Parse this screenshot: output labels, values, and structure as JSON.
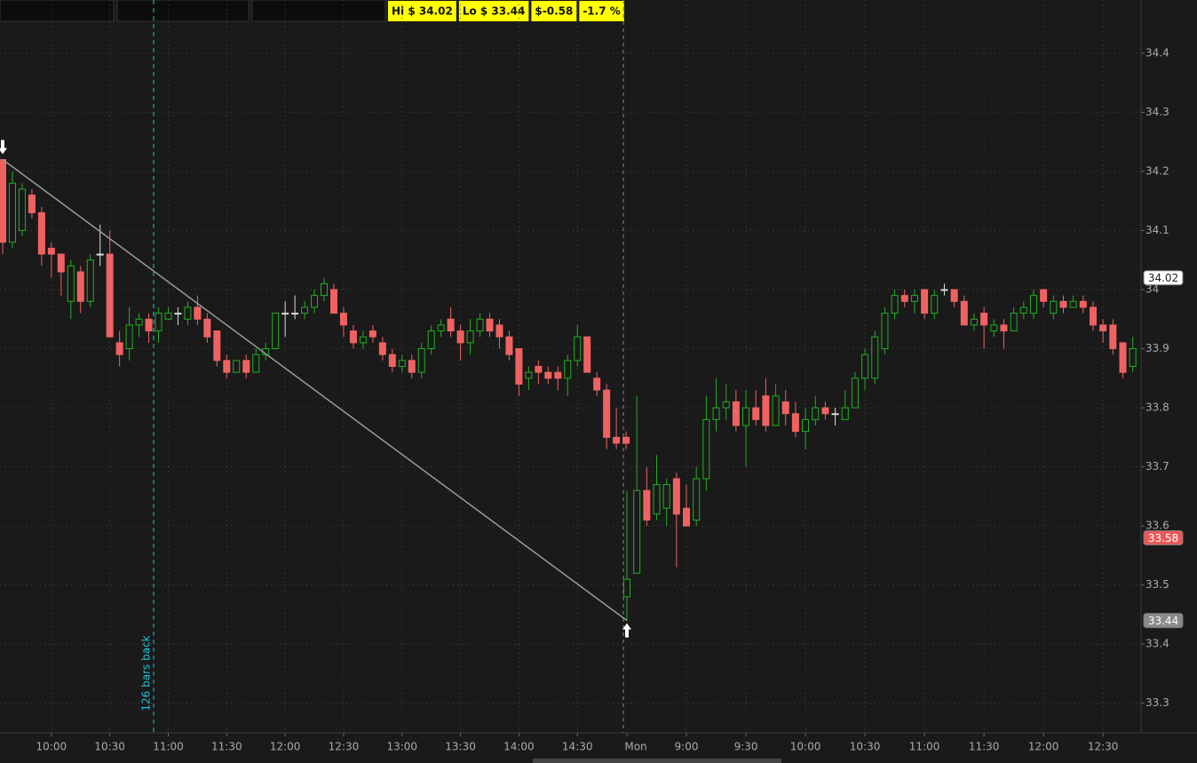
{
  "chart_data": {
    "type": "candlestick",
    "header_labels": [
      "Hi $ 34.02",
      "Lo $ 33.44",
      "$-0.58",
      "-1.7 %"
    ],
    "marker_label": "126 bars back",
    "categories": [
      null,
      null,
      null,
      null,
      null,
      "10:00",
      null,
      null,
      null,
      null,
      null,
      "10:30",
      null,
      null,
      null,
      null,
      null,
      "11:00",
      null,
      null,
      null,
      null,
      null,
      "11:30",
      null,
      null,
      null,
      null,
      null,
      "12:00",
      null,
      null,
      null,
      null,
      null,
      "12:30",
      null,
      null,
      null,
      null,
      null,
      "13:00",
      null,
      null,
      null,
      null,
      null,
      "13:30",
      null,
      null,
      null,
      null,
      null,
      "14:00",
      null,
      null,
      null,
      null,
      null,
      "14:30",
      null,
      null,
      null,
      null,
      null,
      "Mon",
      null,
      null,
      null,
      null,
      null,
      "9:00",
      null,
      null,
      null,
      null,
      null,
      "9:30",
      null,
      null,
      null,
      null,
      null,
      "10:00",
      null,
      null,
      null,
      null,
      null,
      "10:30",
      null,
      null,
      null,
      null,
      null,
      "11:00",
      null,
      null,
      null,
      null,
      null,
      "11:30",
      null,
      null,
      null,
      null,
      null,
      "12:00",
      null,
      null,
      null,
      null,
      null,
      "12:30",
      null,
      null,
      null
    ],
    "open": [
      34.22,
      34.08,
      34.1,
      34.16,
      34.13,
      34.07,
      34.06,
      33.98,
      34.03,
      33.98,
      34.06,
      34.06,
      33.91,
      33.9,
      33.94,
      33.95,
      33.93,
      33.95,
      33.96,
      33.95,
      33.97,
      33.95,
      33.93,
      33.88,
      33.86,
      33.88,
      33.86,
      33.89,
      33.9,
      33.96,
      33.96,
      33.96,
      33.97,
      33.99,
      34.0,
      33.96,
      33.93,
      33.91,
      33.93,
      33.91,
      33.89,
      33.87,
      33.88,
      33.86,
      33.9,
      33.93,
      33.95,
      33.93,
      33.91,
      33.93,
      33.95,
      33.94,
      33.92,
      33.9,
      33.85,
      33.87,
      33.86,
      33.86,
      33.85,
      33.88,
      33.92,
      33.85,
      33.83,
      33.75,
      33.75,
      33.48,
      33.52,
      33.66,
      33.62,
      33.63,
      33.68,
      33.63,
      33.61,
      33.68,
      33.78,
      33.8,
      33.81,
      33.77,
      33.8,
      33.82,
      33.77,
      33.81,
      33.79,
      33.76,
      33.78,
      33.8,
      33.79,
      33.78,
      33.8,
      33.85,
      33.85,
      33.9,
      33.96,
      33.99,
      33.98,
      34.0,
      33.96,
      34.0,
      34.0,
      33.98,
      33.94,
      33.96,
      33.93,
      33.94,
      33.93,
      33.96,
      33.96,
      34.0,
      33.96,
      33.98,
      33.97,
      33.98,
      33.97,
      33.94,
      33.94,
      33.91,
      33.87
    ],
    "high": [
      34.22,
      34.2,
      34.18,
      34.17,
      34.14,
      34.08,
      34.06,
      34.05,
      34.04,
      34.06,
      34.11,
      34.1,
      33.93,
      33.97,
      33.96,
      33.96,
      33.97,
      33.97,
      33.97,
      33.98,
      33.99,
      33.96,
      33.93,
      33.89,
      33.88,
      33.89,
      33.9,
      33.91,
      33.96,
      33.98,
      33.99,
      33.98,
      34.0,
      34.02,
      34.01,
      33.97,
      33.94,
      33.93,
      33.94,
      33.92,
      33.9,
      33.89,
      33.89,
      33.91,
      33.94,
      33.95,
      33.97,
      33.94,
      33.95,
      33.96,
      33.96,
      33.95,
      33.93,
      33.9,
      33.87,
      33.88,
      33.87,
      33.87,
      33.89,
      33.94,
      33.92,
      33.86,
      33.84,
      33.8,
      33.76,
      33.66,
      33.82,
      33.7,
      33.72,
      33.68,
      33.69,
      33.67,
      33.7,
      33.82,
      33.85,
      33.84,
      33.83,
      33.83,
      33.83,
      33.85,
      33.84,
      33.83,
      33.81,
      33.8,
      33.82,
      33.81,
      33.8,
      33.83,
      33.86,
      33.9,
      33.93,
      33.97,
      34.0,
      34.0,
      34.0,
      34.0,
      34.0,
      34.01,
      34.0,
      33.99,
      33.96,
      33.97,
      33.95,
      33.95,
      33.97,
      33.98,
      34.0,
      34.0,
      33.99,
      33.99,
      33.99,
      33.99,
      33.98,
      33.95,
      33.95,
      33.91,
      33.92
    ],
    "low": [
      34.06,
      34.07,
      34.09,
      34.12,
      34.04,
      34.02,
      33.99,
      33.95,
      33.96,
      33.97,
      34.04,
      33.92,
      33.87,
      33.88,
      33.92,
      33.91,
      33.91,
      33.95,
      33.94,
      33.94,
      33.94,
      33.91,
      33.87,
      33.85,
      33.86,
      33.85,
      33.86,
      33.88,
      33.9,
      33.92,
      33.95,
      33.95,
      33.96,
      33.98,
      33.96,
      33.92,
      33.9,
      33.9,
      33.91,
      33.88,
      33.86,
      33.86,
      33.85,
      33.85,
      33.89,
      33.92,
      33.92,
      33.88,
      33.89,
      33.92,
      33.92,
      33.9,
      33.88,
      33.82,
      33.83,
      33.84,
      33.84,
      33.83,
      33.82,
      33.87,
      33.86,
      33.82,
      33.73,
      33.73,
      33.73,
      33.44,
      33.52,
      33.6,
      33.61,
      33.6,
      33.53,
      33.6,
      33.6,
      33.66,
      33.76,
      33.78,
      33.76,
      33.7,
      33.77,
      33.76,
      33.77,
      33.77,
      33.75,
      33.73,
      33.77,
      33.78,
      33.77,
      33.78,
      33.8,
      33.83,
      33.84,
      33.89,
      33.95,
      33.97,
      33.96,
      33.95,
      33.95,
      33.99,
      33.97,
      33.94,
      33.93,
      33.9,
      33.92,
      33.9,
      33.93,
      33.95,
      33.95,
      33.97,
      33.95,
      33.96,
      33.97,
      33.96,
      33.93,
      33.91,
      33.89,
      33.85,
      33.86
    ],
    "close": [
      34.08,
      34.18,
      34.17,
      34.13,
      34.06,
      34.06,
      34.03,
      34.04,
      33.98,
      34.05,
      34.06,
      33.92,
      33.89,
      33.94,
      33.95,
      33.93,
      33.96,
      33.96,
      33.96,
      33.97,
      33.95,
      33.92,
      33.88,
      33.86,
      33.88,
      33.86,
      33.89,
      33.9,
      33.96,
      33.96,
      33.96,
      33.97,
      33.99,
      34.01,
      33.96,
      33.94,
      33.91,
      33.92,
      33.92,
      33.89,
      33.87,
      33.88,
      33.86,
      33.9,
      33.93,
      33.94,
      33.93,
      33.91,
      33.93,
      33.95,
      33.93,
      33.92,
      33.89,
      33.84,
      33.86,
      33.86,
      33.85,
      33.85,
      33.88,
      33.92,
      33.86,
      33.83,
      33.75,
      33.74,
      33.74,
      33.51,
      33.66,
      33.61,
      33.67,
      33.67,
      33.62,
      33.6,
      33.68,
      33.78,
      33.8,
      33.81,
      33.77,
      33.8,
      33.78,
      33.77,
      33.82,
      33.79,
      33.76,
      33.78,
      33.8,
      33.79,
      33.79,
      33.8,
      33.85,
      33.89,
      33.92,
      33.96,
      33.99,
      33.98,
      33.99,
      33.96,
      33.99,
      34.0,
      33.98,
      33.94,
      33.95,
      33.94,
      33.94,
      33.93,
      33.96,
      33.97,
      33.99,
      33.98,
      33.98,
      33.97,
      33.98,
      33.97,
      33.94,
      33.93,
      33.9,
      33.86,
      33.9
    ],
    "up_color": "#22b022",
    "down_color": "#f06262",
    "flat_color": "#dddddd",
    "ylim": [
      33.25,
      34.49
    ],
    "yticks": [
      33.3,
      33.4,
      33.5,
      33.6,
      33.7,
      33.8,
      33.9,
      34,
      34.1,
      34.2,
      34.3,
      34.4
    ],
    "grid": true,
    "price_bubbles": [
      {
        "value": 34.02,
        "color": "#ffffff",
        "text_color": "#222222"
      },
      {
        "value": 33.58,
        "color": "#e85a5a",
        "text_color": "#ffffff"
      },
      {
        "value": 33.44,
        "color": "#8a8a8a",
        "text_color": "#ffffff"
      }
    ]
  }
}
